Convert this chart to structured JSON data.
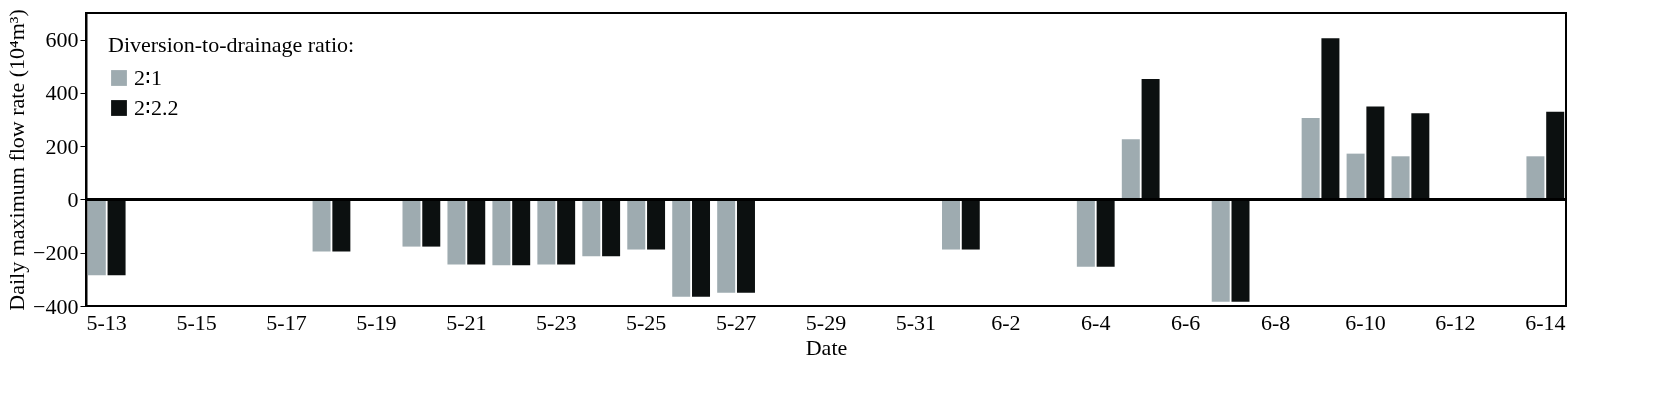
{
  "chart_data": {
    "type": "bar",
    "xlabel": "Date",
    "ylabel": "Daily maximum flow rate (10⁴m³)",
    "legend_title": "Diversion-to-drainage ratio:",
    "categories": [
      "5-13",
      null,
      "5-15",
      null,
      "5-17",
      null,
      "5-19",
      null,
      "5-21",
      null,
      "5-23",
      null,
      "5-25",
      null,
      "5-27",
      null,
      "5-29",
      null,
      "5-31",
      null,
      "6-2",
      null,
      "6-4",
      null,
      "6-6",
      null,
      "6-8",
      null,
      "6-10",
      null,
      "6-12",
      null,
      "6-14"
    ],
    "series": [
      {
        "name": "2∶1",
        "color": "#9eabb0",
        "values": [
          -285,
          null,
          null,
          null,
          null,
          -195,
          null,
          -177,
          -244,
          -247,
          -244,
          -213,
          -188,
          -365,
          -350,
          null,
          null,
          null,
          null,
          -188,
          null,
          null,
          -253,
          226,
          null,
          -384,
          null,
          306,
          172,
          162,
          null,
          null,
          162
        ]
      },
      {
        "name": "2∶2.2",
        "color": "#0c1010",
        "values": [
          -285,
          null,
          null,
          null,
          null,
          -195,
          null,
          -177,
          -244,
          -247,
          -244,
          -213,
          -188,
          -365,
          -350,
          null,
          null,
          null,
          null,
          -188,
          null,
          null,
          -253,
          452,
          null,
          -384,
          null,
          605,
          349,
          324,
          null,
          null,
          329
        ]
      }
    ],
    "ylim": [
      -400,
      700
    ],
    "yticks": [
      -400,
      -200,
      0,
      200,
      400,
      600
    ],
    "legend": "top left"
  }
}
